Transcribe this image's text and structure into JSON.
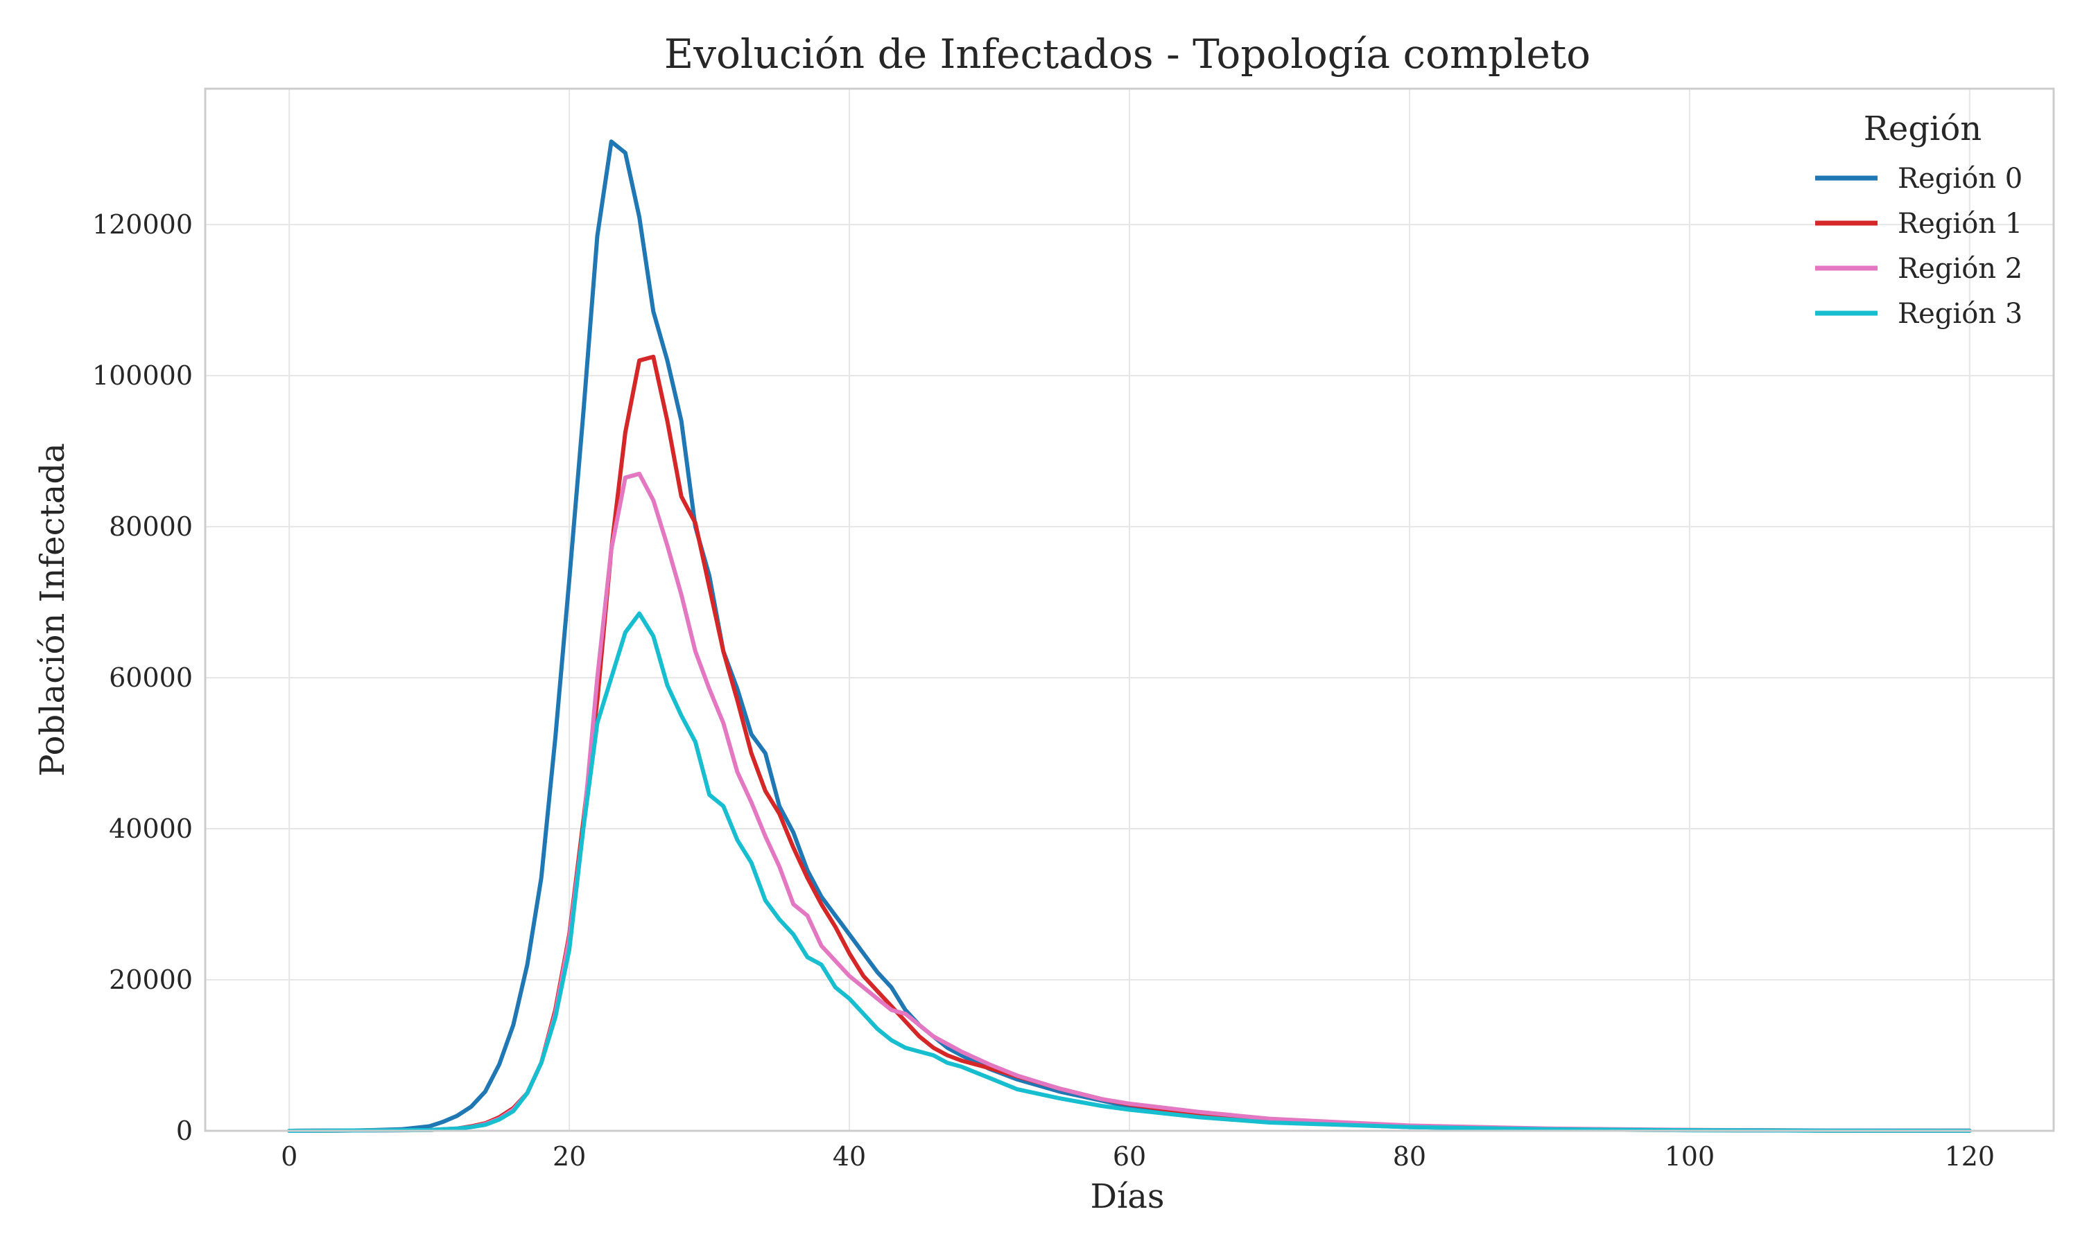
{
  "chart_data": {
    "type": "line",
    "title": "Evolución de Infectados - Topología completo",
    "xlabel": "Días",
    "ylabel": "Población Infectada",
    "xlim": [
      -6,
      126
    ],
    "ylim": [
      0,
      138000
    ],
    "xticks": [
      0,
      20,
      40,
      60,
      80,
      100,
      120
    ],
    "yticks": [
      0,
      20000,
      40000,
      60000,
      80000,
      100000,
      120000
    ],
    "grid": true,
    "legend": {
      "title": "Región",
      "placement": "top-right"
    },
    "series": [
      {
        "name": "Región 0",
        "color": "#1f77b4",
        "points": [
          [
            0,
            0
          ],
          [
            5,
            50
          ],
          [
            8,
            200
          ],
          [
            10,
            600
          ],
          [
            11,
            1200
          ],
          [
            12,
            2000
          ],
          [
            13,
            3200
          ],
          [
            14,
            5200
          ],
          [
            15,
            8800
          ],
          [
            16,
            14000
          ],
          [
            17,
            22000
          ],
          [
            18,
            33500
          ],
          [
            19,
            52000
          ],
          [
            20,
            73000
          ],
          [
            21,
            95000
          ],
          [
            22,
            118500
          ],
          [
            23,
            131000
          ],
          [
            24,
            129500
          ],
          [
            25,
            121000
          ],
          [
            26,
            108500
          ],
          [
            27,
            102000
          ],
          [
            28,
            94000
          ],
          [
            29,
            80000
          ],
          [
            30,
            73500
          ],
          [
            31,
            63500
          ],
          [
            32,
            58500
          ],
          [
            33,
            52500
          ],
          [
            34,
            50000
          ],
          [
            35,
            43000
          ],
          [
            36,
            39500
          ],
          [
            37,
            34500
          ],
          [
            38,
            31000
          ],
          [
            39,
            28500
          ],
          [
            40,
            26000
          ],
          [
            41,
            23500
          ],
          [
            42,
            21000
          ],
          [
            43,
            19000
          ],
          [
            44,
            16000
          ],
          [
            45,
            14000
          ],
          [
            46,
            12500
          ],
          [
            47,
            11000
          ],
          [
            48,
            10000
          ],
          [
            50,
            8200
          ],
          [
            52,
            6800
          ],
          [
            55,
            5200
          ],
          [
            60,
            3200
          ],
          [
            65,
            2000
          ],
          [
            70,
            1200
          ],
          [
            80,
            500
          ],
          [
            90,
            200
          ],
          [
            100,
            80
          ],
          [
            110,
            30
          ],
          [
            120,
            10
          ]
        ]
      },
      {
        "name": "Región 1",
        "color": "#d62728",
        "points": [
          [
            0,
            0
          ],
          [
            10,
            100
          ],
          [
            12,
            300
          ],
          [
            13,
            600
          ],
          [
            14,
            1000
          ],
          [
            15,
            1800
          ],
          [
            16,
            3000
          ],
          [
            17,
            5000
          ],
          [
            18,
            9000
          ],
          [
            19,
            16000
          ],
          [
            20,
            26000
          ],
          [
            21,
            41000
          ],
          [
            22,
            57000
          ],
          [
            23,
            77000
          ],
          [
            24,
            92500
          ],
          [
            25,
            102000
          ],
          [
            26,
            102500
          ],
          [
            27,
            94000
          ],
          [
            28,
            84000
          ],
          [
            29,
            80500
          ],
          [
            30,
            72000
          ],
          [
            31,
            63500
          ],
          [
            32,
            57000
          ],
          [
            33,
            50000
          ],
          [
            34,
            45000
          ],
          [
            35,
            42000
          ],
          [
            36,
            37500
          ],
          [
            37,
            33500
          ],
          [
            38,
            30000
          ],
          [
            39,
            27000
          ],
          [
            40,
            23500
          ],
          [
            41,
            20500
          ],
          [
            42,
            18500
          ],
          [
            43,
            16500
          ],
          [
            44,
            14500
          ],
          [
            45,
            12500
          ],
          [
            46,
            11000
          ],
          [
            47,
            10000
          ],
          [
            48,
            9300
          ],
          [
            50,
            8300
          ],
          [
            52,
            7200
          ],
          [
            55,
            5600
          ],
          [
            58,
            4200
          ],
          [
            60,
            3500
          ],
          [
            65,
            2200
          ],
          [
            70,
            1400
          ],
          [
            80,
            600
          ],
          [
            90,
            250
          ],
          [
            100,
            100
          ],
          [
            110,
            40
          ],
          [
            120,
            15
          ]
        ]
      },
      {
        "name": "Región 2",
        "color": "#e377c2",
        "points": [
          [
            0,
            0
          ],
          [
            10,
            100
          ],
          [
            12,
            300
          ],
          [
            13,
            500
          ],
          [
            14,
            900
          ],
          [
            15,
            1600
          ],
          [
            16,
            2800
          ],
          [
            17,
            5000
          ],
          [
            18,
            9000
          ],
          [
            19,
            15500
          ],
          [
            20,
            25500
          ],
          [
            21,
            40000
          ],
          [
            22,
            60000
          ],
          [
            23,
            77000
          ],
          [
            24,
            86500
          ],
          [
            25,
            87000
          ],
          [
            26,
            83500
          ],
          [
            27,
            77500
          ],
          [
            28,
            71000
          ],
          [
            29,
            63500
          ],
          [
            30,
            58500
          ],
          [
            31,
            54000
          ],
          [
            32,
            47500
          ],
          [
            33,
            43500
          ],
          [
            34,
            39000
          ],
          [
            35,
            35000
          ],
          [
            36,
            30000
          ],
          [
            37,
            28500
          ],
          [
            38,
            24500
          ],
          [
            39,
            22500
          ],
          [
            40,
            20500
          ],
          [
            41,
            19000
          ],
          [
            42,
            17500
          ],
          [
            43,
            16000
          ],
          [
            44,
            15500
          ],
          [
            45,
            14000
          ],
          [
            46,
            12500
          ],
          [
            47,
            11500
          ],
          [
            48,
            10500
          ],
          [
            50,
            8800
          ],
          [
            52,
            7300
          ],
          [
            55,
            5600
          ],
          [
            58,
            4200
          ],
          [
            60,
            3600
          ],
          [
            65,
            2500
          ],
          [
            70,
            1600
          ],
          [
            80,
            700
          ],
          [
            90,
            300
          ],
          [
            100,
            120
          ],
          [
            110,
            50
          ],
          [
            120,
            20
          ]
        ]
      },
      {
        "name": "Región 3",
        "color": "#17becf",
        "points": [
          [
            0,
            0
          ],
          [
            10,
            100
          ],
          [
            12,
            300
          ],
          [
            13,
            500
          ],
          [
            14,
            800
          ],
          [
            15,
            1500
          ],
          [
            16,
            2600
          ],
          [
            17,
            5000
          ],
          [
            18,
            9000
          ],
          [
            19,
            15000
          ],
          [
            20,
            24000
          ],
          [
            21,
            40000
          ],
          [
            22,
            54000
          ],
          [
            23,
            60000
          ],
          [
            24,
            66000
          ],
          [
            25,
            68500
          ],
          [
            26,
            65500
          ],
          [
            27,
            59000
          ],
          [
            28,
            55000
          ],
          [
            29,
            51500
          ],
          [
            30,
            44500
          ],
          [
            31,
            43000
          ],
          [
            32,
            38500
          ],
          [
            33,
            35500
          ],
          [
            34,
            30500
          ],
          [
            35,
            28000
          ],
          [
            36,
            26000
          ],
          [
            37,
            23000
          ],
          [
            38,
            22000
          ],
          [
            39,
            19000
          ],
          [
            40,
            17500
          ],
          [
            41,
            15500
          ],
          [
            42,
            13500
          ],
          [
            43,
            12000
          ],
          [
            44,
            11000
          ],
          [
            45,
            10500
          ],
          [
            46,
            10000
          ],
          [
            47,
            9000
          ],
          [
            48,
            8500
          ],
          [
            50,
            7000
          ],
          [
            52,
            5500
          ],
          [
            55,
            4300
          ],
          [
            58,
            3300
          ],
          [
            60,
            2800
          ],
          [
            65,
            1800
          ],
          [
            70,
            1100
          ],
          [
            80,
            500
          ],
          [
            90,
            200
          ],
          [
            100,
            80
          ],
          [
            110,
            30
          ],
          [
            120,
            10
          ]
        ]
      }
    ]
  }
}
